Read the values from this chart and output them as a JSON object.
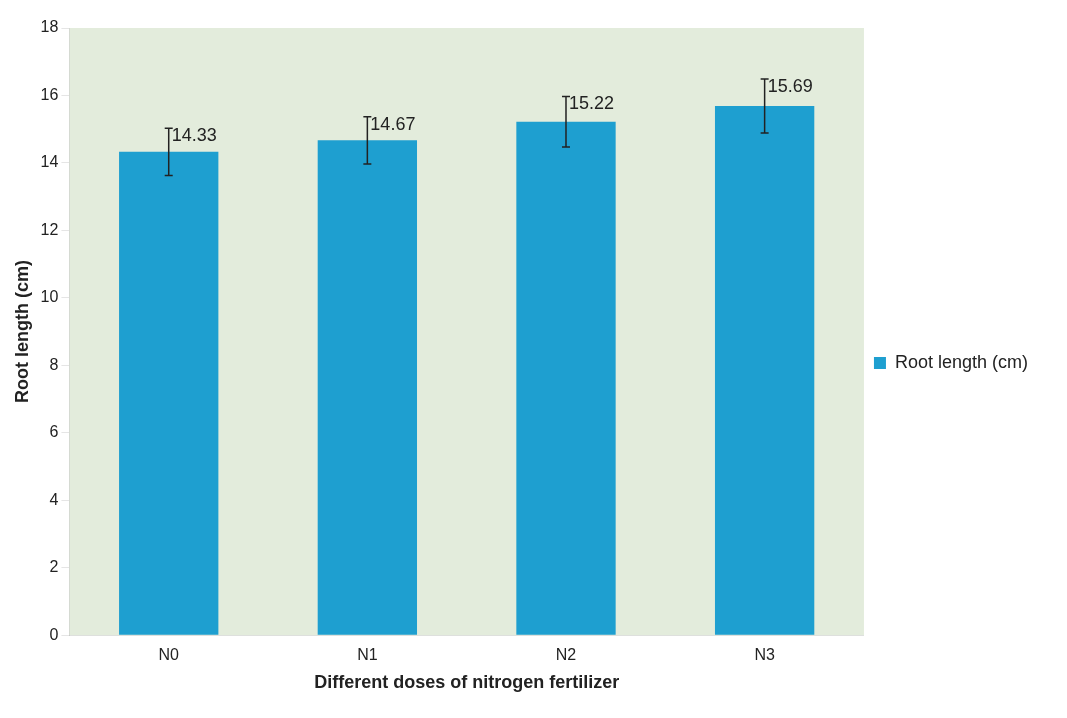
{
  "chart_data": {
    "type": "bar",
    "xlabel": "Different doses of nitrogen fertilizer",
    "ylabel": "Root length (cm)",
    "categories": [
      "N0",
      "N1",
      "N2",
      "N3"
    ],
    "series": [
      {
        "name": "Root length (cm)",
        "color": "#1e9fd0",
        "values": [
          14.33,
          14.67,
          15.22,
          15.69
        ],
        "errors": [
          0.7,
          0.7,
          0.75,
          0.8
        ]
      }
    ],
    "ylim": [
      0,
      18
    ],
    "yticks": [
      0,
      2,
      4,
      6,
      8,
      10,
      12,
      14,
      16,
      18
    ],
    "grid": false,
    "legend": "right",
    "data_labels": true
  }
}
